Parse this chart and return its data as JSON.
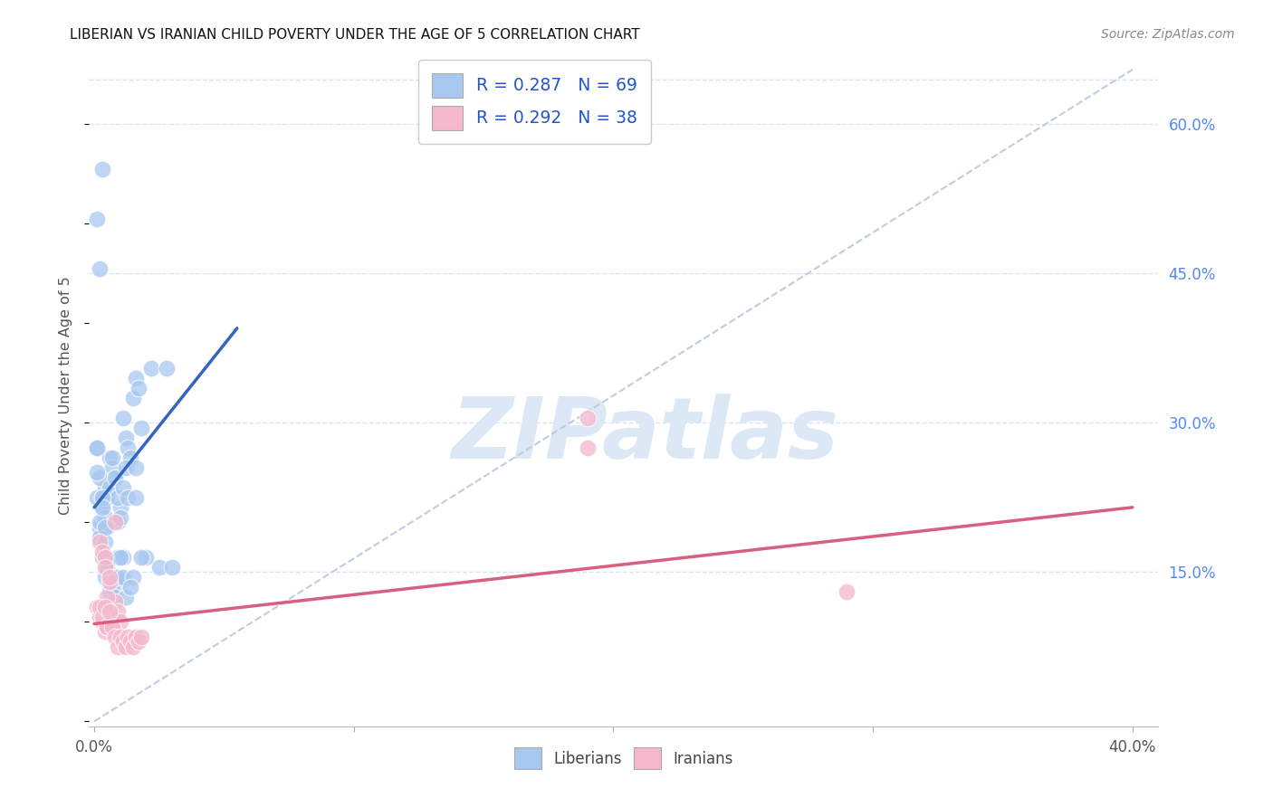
{
  "title": "LIBERIAN VS IRANIAN CHILD POVERTY UNDER THE AGE OF 5 CORRELATION CHART",
  "source": "Source: ZipAtlas.com",
  "ylabel": "Child Poverty Under the Age of 5",
  "xlim": [
    -0.002,
    0.41
  ],
  "ylim": [
    -0.005,
    0.66
  ],
  "xtick_positions": [
    0.0,
    0.1,
    0.2,
    0.3,
    0.4
  ],
  "xtick_labels": [
    "0.0%",
    "",
    "",
    "",
    "40.0%"
  ],
  "ytick_positions": [
    0.15,
    0.3,
    0.45,
    0.6
  ],
  "ytick_labels": [
    "15.0%",
    "30.0%",
    "45.0%",
    "60.0%"
  ],
  "liberian_color": "#a8c8f0",
  "iranian_color": "#f5b8cc",
  "legend_label_1": "R = 0.287   N = 69",
  "legend_label_2": "R = 0.292   N = 38",
  "bg_color": "#ffffff",
  "grid_color": "#d8e4f0",
  "watermark_color": "#dce8f5",
  "lib_x": [
    0.001,
    0.002,
    0.003,
    0.004,
    0.005,
    0.006,
    0.007,
    0.008,
    0.009,
    0.01,
    0.011,
    0.012,
    0.013,
    0.014,
    0.015,
    0.016,
    0.017,
    0.018,
    0.001,
    0.002,
    0.003,
    0.001,
    0.002,
    0.003,
    0.004,
    0.005,
    0.006,
    0.007,
    0.008,
    0.009,
    0.01,
    0.011,
    0.012,
    0.013,
    0.002,
    0.003,
    0.004,
    0.005,
    0.006,
    0.007,
    0.008,
    0.009,
    0.01,
    0.011,
    0.003,
    0.004,
    0.005,
    0.006,
    0.007,
    0.008,
    0.009,
    0.01,
    0.011,
    0.015,
    0.02,
    0.025,
    0.03,
    0.016,
    0.022,
    0.028,
    0.018,
    0.012,
    0.014,
    0.016,
    0.001,
    0.001,
    0.002,
    0.003,
    0.004
  ],
  "lib_y": [
    0.225,
    0.195,
    0.215,
    0.235,
    0.225,
    0.265,
    0.255,
    0.245,
    0.2,
    0.215,
    0.305,
    0.285,
    0.275,
    0.265,
    0.325,
    0.345,
    0.335,
    0.295,
    0.505,
    0.455,
    0.555,
    0.275,
    0.245,
    0.225,
    0.205,
    0.195,
    0.235,
    0.265,
    0.245,
    0.225,
    0.205,
    0.235,
    0.255,
    0.225,
    0.185,
    0.165,
    0.145,
    0.155,
    0.135,
    0.125,
    0.145,
    0.165,
    0.14,
    0.165,
    0.225,
    0.18,
    0.16,
    0.13,
    0.135,
    0.125,
    0.145,
    0.165,
    0.145,
    0.145,
    0.165,
    0.155,
    0.155,
    0.225,
    0.355,
    0.355,
    0.165,
    0.125,
    0.135,
    0.255,
    0.25,
    0.275,
    0.2,
    0.215,
    0.195
  ],
  "iran_x": [
    0.001,
    0.002,
    0.003,
    0.004,
    0.005,
    0.006,
    0.007,
    0.008,
    0.009,
    0.01,
    0.002,
    0.003,
    0.004,
    0.005,
    0.006,
    0.002,
    0.003,
    0.004,
    0.005,
    0.006,
    0.007,
    0.008,
    0.009,
    0.01,
    0.011,
    0.012,
    0.013,
    0.014,
    0.015,
    0.016,
    0.017,
    0.018,
    0.004,
    0.006,
    0.008,
    0.19,
    0.29,
    0.19
  ],
  "iran_y": [
    0.115,
    0.105,
    0.1,
    0.09,
    0.095,
    0.105,
    0.1,
    0.12,
    0.11,
    0.1,
    0.18,
    0.17,
    0.165,
    0.125,
    0.14,
    0.115,
    0.105,
    0.115,
    0.095,
    0.11,
    0.095,
    0.085,
    0.075,
    0.085,
    0.08,
    0.075,
    0.085,
    0.08,
    0.075,
    0.085,
    0.08,
    0.085,
    0.155,
    0.145,
    0.2,
    0.305,
    0.13,
    0.275
  ],
  "lib_trend": [
    0.0,
    0.215,
    0.055,
    0.395
  ],
  "iran_trend": [
    0.0,
    0.098,
    0.4,
    0.215
  ],
  "diag_line": [
    0.0,
    0.0,
    0.4,
    0.655
  ]
}
